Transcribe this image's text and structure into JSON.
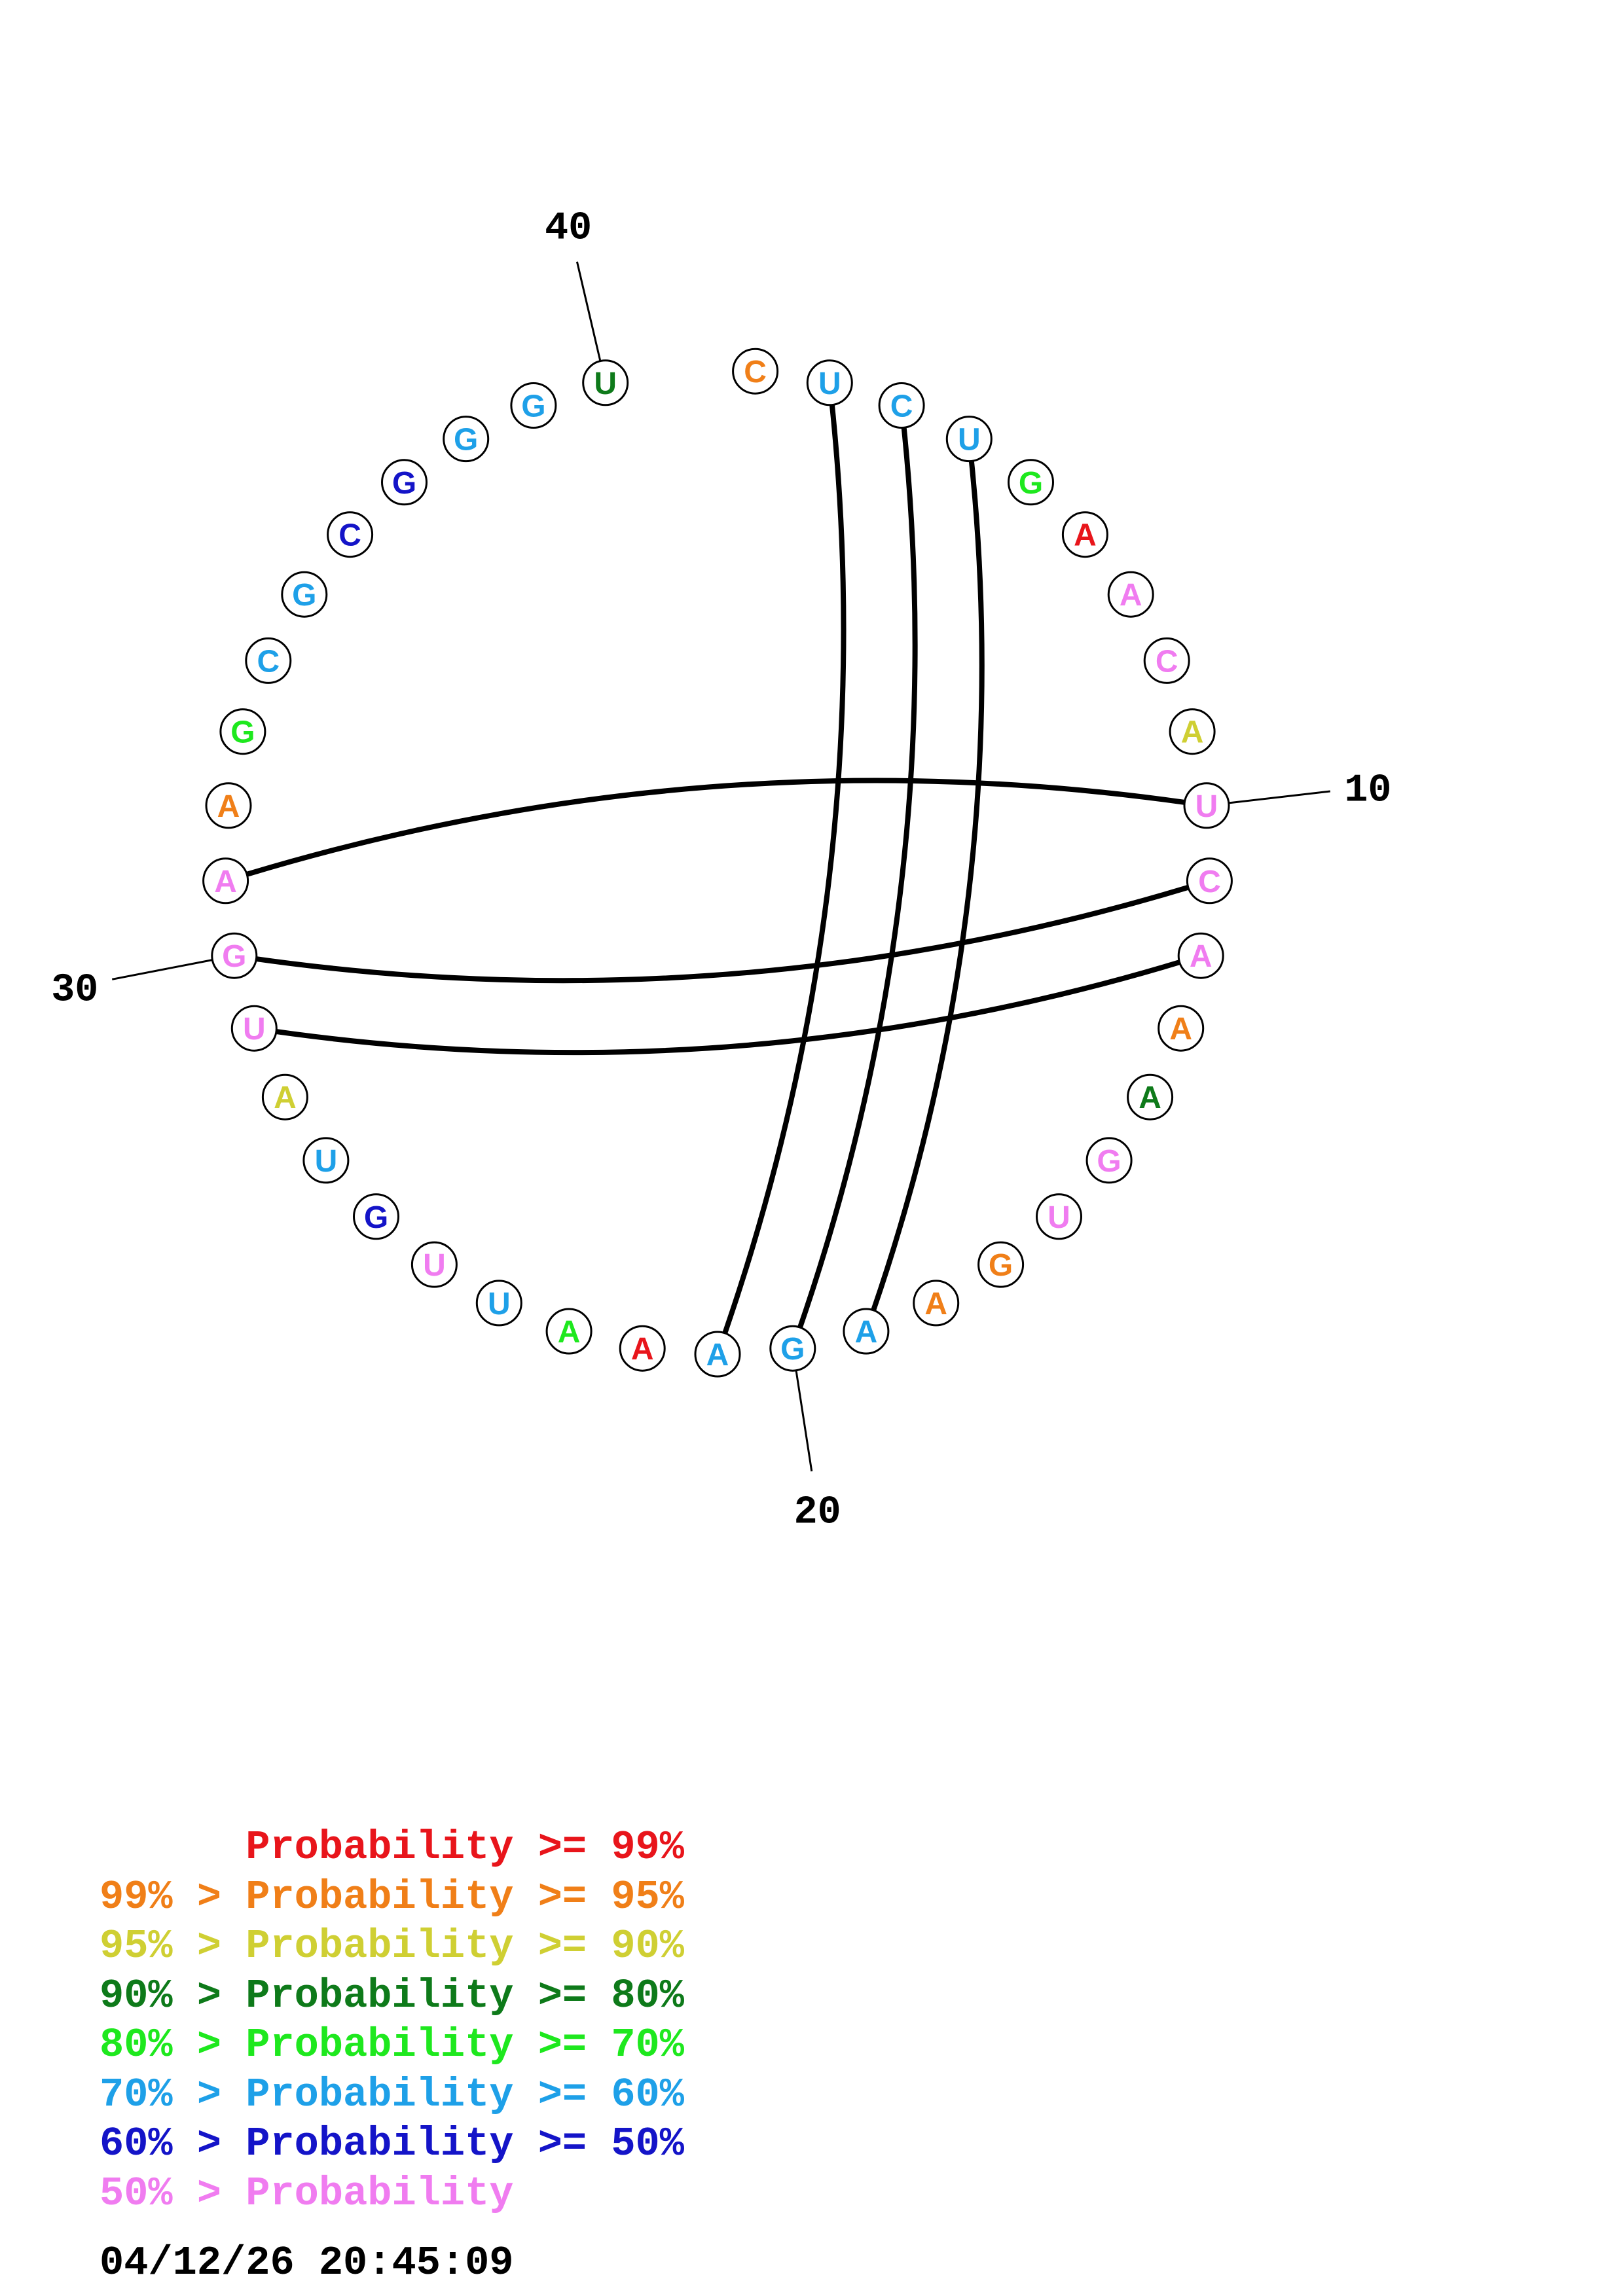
{
  "colors": {
    "p99": "#e8151b",
    "p95": "#f07f18",
    "p90": "#cfcf33",
    "p80": "#0e7a1a",
    "p70": "#1ee81e",
    "p60": "#1ea0e8",
    "p50": "#1414c8",
    "lt50": "#f07cf0",
    "ink": "#000000"
  },
  "nucleotides": [
    {
      "n": 1,
      "base": "C",
      "prob": "p95"
    },
    {
      "n": 2,
      "base": "U",
      "prob": "p60"
    },
    {
      "n": 3,
      "base": "C",
      "prob": "p60"
    },
    {
      "n": 4,
      "base": "U",
      "prob": "p60"
    },
    {
      "n": 5,
      "base": "G",
      "prob": "p70"
    },
    {
      "n": 6,
      "base": "A",
      "prob": "p99"
    },
    {
      "n": 7,
      "base": "A",
      "prob": "lt50"
    },
    {
      "n": 8,
      "base": "C",
      "prob": "lt50"
    },
    {
      "n": 9,
      "base": "A",
      "prob": "p90"
    },
    {
      "n": 10,
      "base": "U",
      "prob": "lt50"
    },
    {
      "n": 11,
      "base": "C",
      "prob": "lt50"
    },
    {
      "n": 12,
      "base": "A",
      "prob": "lt50"
    },
    {
      "n": 13,
      "base": "A",
      "prob": "p95"
    },
    {
      "n": 14,
      "base": "A",
      "prob": "p80"
    },
    {
      "n": 15,
      "base": "G",
      "prob": "lt50"
    },
    {
      "n": 16,
      "base": "U",
      "prob": "lt50"
    },
    {
      "n": 17,
      "base": "G",
      "prob": "p95"
    },
    {
      "n": 18,
      "base": "A",
      "prob": "p95"
    },
    {
      "n": 19,
      "base": "A",
      "prob": "p60"
    },
    {
      "n": 20,
      "base": "G",
      "prob": "p60"
    },
    {
      "n": 21,
      "base": "A",
      "prob": "p60"
    },
    {
      "n": 22,
      "base": "A",
      "prob": "p99"
    },
    {
      "n": 23,
      "base": "A",
      "prob": "p70"
    },
    {
      "n": 24,
      "base": "U",
      "prob": "p60"
    },
    {
      "n": 25,
      "base": "U",
      "prob": "lt50"
    },
    {
      "n": 26,
      "base": "G",
      "prob": "p50"
    },
    {
      "n": 27,
      "base": "U",
      "prob": "p60"
    },
    {
      "n": 28,
      "base": "A",
      "prob": "p90"
    },
    {
      "n": 29,
      "base": "U",
      "prob": "lt50"
    },
    {
      "n": 30,
      "base": "G",
      "prob": "lt50"
    },
    {
      "n": 31,
      "base": "A",
      "prob": "lt50"
    },
    {
      "n": 32,
      "base": "A",
      "prob": "p95"
    },
    {
      "n": 33,
      "base": "G",
      "prob": "p70"
    },
    {
      "n": 34,
      "base": "C",
      "prob": "p60"
    },
    {
      "n": 35,
      "base": "G",
      "prob": "p60"
    },
    {
      "n": 36,
      "base": "C",
      "prob": "p50"
    },
    {
      "n": 37,
      "base": "G",
      "prob": "p50"
    },
    {
      "n": 38,
      "base": "G",
      "prob": "p60"
    },
    {
      "n": 39,
      "base": "G",
      "prob": "p60"
    },
    {
      "n": 40,
      "base": "U",
      "prob": "p80"
    }
  ],
  "pairs": [
    [
      2,
      21
    ],
    [
      3,
      20
    ],
    [
      4,
      19
    ],
    [
      10,
      31
    ],
    [
      11,
      30
    ],
    [
      12,
      29
    ]
  ],
  "tick_labels": [
    {
      "n": 10,
      "label": "10"
    },
    {
      "n": 20,
      "label": "20"
    },
    {
      "n": 30,
      "label": "30"
    },
    {
      "n": 40,
      "label": "40"
    }
  ],
  "legend": [
    {
      "prob": "p99",
      "text": "      Probability >= 99%"
    },
    {
      "prob": "p95",
      "text": "99% > Probability >= 95%"
    },
    {
      "prob": "p90",
      "text": "95% > Probability >= 90%"
    },
    {
      "prob": "p80",
      "text": "90% > Probability >= 80%"
    },
    {
      "prob": "p70",
      "text": "80% > Probability >= 70%"
    },
    {
      "prob": "p60",
      "text": "70% > Probability >= 60%"
    },
    {
      "prob": "p50",
      "text": "60% > Probability >= 50%"
    },
    {
      "prob": "lt50",
      "text": "50% > Probability"
    }
  ],
  "timestamp": "04/12/26 20:45:09"
}
